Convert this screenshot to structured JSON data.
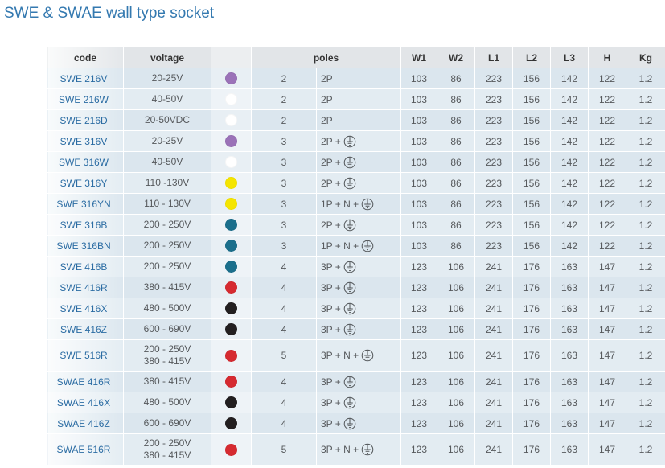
{
  "title": "SWE & SWAE wall type socket",
  "theme": {
    "title_color": "#3479b0",
    "code_text_color": "#2b6ca3",
    "header_background": "#e2e5e8",
    "row_background": "#dbe6ee"
  },
  "table": {
    "headers": {
      "code": "code",
      "voltage": "voltage",
      "poles": "poles",
      "w1": "W1",
      "w2": "W2",
      "l1": "L1",
      "l2": "L2",
      "l3": "L3",
      "h": "H",
      "kg": "Kg"
    },
    "rows": [
      {
        "code": "SWE 216V",
        "voltage": [
          "20-25V"
        ],
        "color": "#9b72b8",
        "pole_count": 2,
        "poles": "2P",
        "earth_icon": null,
        "w1": 103,
        "w2": 86,
        "l1": 223,
        "l2": 156,
        "l3": 142,
        "h": 122,
        "kg": "1.2"
      },
      {
        "code": "SWE 216W",
        "voltage": [
          "40-50V"
        ],
        "color": "#ffffff",
        "pole_count": 2,
        "poles": "2P",
        "earth_icon": null,
        "w1": 103,
        "w2": 86,
        "l1": 223,
        "l2": 156,
        "l3": 142,
        "h": 122,
        "kg": "1.2"
      },
      {
        "code": "SWE 216D",
        "voltage": [
          "20-50VDC"
        ],
        "color": "#ffffff",
        "pole_count": 2,
        "poles": "2P",
        "earth_icon": null,
        "w1": 103,
        "w2": 86,
        "l1": 223,
        "l2": 156,
        "l3": 142,
        "h": 122,
        "kg": "1.2"
      },
      {
        "code": "SWE 316V",
        "voltage": [
          "20-25V"
        ],
        "color": "#9b72b8",
        "pole_count": 3,
        "poles": "2P +",
        "earth_icon": "earth-ground-icon",
        "w1": 103,
        "w2": 86,
        "l1": 223,
        "l2": 156,
        "l3": 142,
        "h": 122,
        "kg": "1.2"
      },
      {
        "code": "SWE 316W",
        "voltage": [
          "40-50V"
        ],
        "color": "#ffffff",
        "pole_count": 3,
        "poles": "2P +",
        "earth_icon": "earth-ground-icon",
        "w1": 103,
        "w2": 86,
        "l1": 223,
        "l2": 156,
        "l3": 142,
        "h": 122,
        "kg": "1.2"
      },
      {
        "code": "SWE 316Y",
        "voltage": [
          "110 -130V"
        ],
        "color": "#f5e500",
        "pole_count": 3,
        "poles": "2P +",
        "earth_icon": "earth-ground-icon",
        "w1": 103,
        "w2": 86,
        "l1": 223,
        "l2": 156,
        "l3": 142,
        "h": 122,
        "kg": "1.2"
      },
      {
        "code": "SWE 316YN",
        "voltage": [
          "110 - 130V"
        ],
        "color": "#f5e500",
        "pole_count": 3,
        "poles": "1P + N +",
        "earth_icon": "earth-ground-icon",
        "w1": 103,
        "w2": 86,
        "l1": 223,
        "l2": 156,
        "l3": 142,
        "h": 122,
        "kg": "1.2"
      },
      {
        "code": "SWE 316B",
        "voltage": [
          "200 - 250V"
        ],
        "color": "#1b6f8c",
        "pole_count": 3,
        "poles": "2P +",
        "earth_icon": "earth-ground-icon",
        "w1": 103,
        "w2": 86,
        "l1": 223,
        "l2": 156,
        "l3": 142,
        "h": 122,
        "kg": "1.2"
      },
      {
        "code": "SWE 316BN",
        "voltage": [
          "200 - 250V"
        ],
        "color": "#1b6f8c",
        "pole_count": 3,
        "poles": "1P + N +",
        "earth_icon": "earth-ground-icon",
        "w1": 103,
        "w2": 86,
        "l1": 223,
        "l2": 156,
        "l3": 142,
        "h": 122,
        "kg": "1.2"
      },
      {
        "code": "SWE 416B",
        "voltage": [
          "200 - 250V"
        ],
        "color": "#1b6f8c",
        "pole_count": 4,
        "poles": "3P +",
        "earth_icon": "earth-ground-icon",
        "w1": 123,
        "w2": 106,
        "l1": 241,
        "l2": 176,
        "l3": 163,
        "h": 147,
        "kg": "1.2"
      },
      {
        "code": "SWE 416R",
        "voltage": [
          "380 - 415V"
        ],
        "color": "#d62a30",
        "pole_count": 4,
        "poles": "3P +",
        "earth_icon": "earth-ground-icon",
        "w1": 123,
        "w2": 106,
        "l1": 241,
        "l2": 176,
        "l3": 163,
        "h": 147,
        "kg": "1.2"
      },
      {
        "code": "SWE 416X",
        "voltage": [
          "480 - 500V"
        ],
        "color": "#231f20",
        "pole_count": 4,
        "poles": "3P +",
        "earth_icon": "earth-ground-icon",
        "w1": 123,
        "w2": 106,
        "l1": 241,
        "l2": 176,
        "l3": 163,
        "h": 147,
        "kg": "1.2"
      },
      {
        "code": "SWE 416Z",
        "voltage": [
          "600 - 690V"
        ],
        "color": "#231f20",
        "pole_count": 4,
        "poles": "3P +",
        "earth_icon": "earth-ground-icon",
        "w1": 123,
        "w2": 106,
        "l1": 241,
        "l2": 176,
        "l3": 163,
        "h": 147,
        "kg": "1.2"
      },
      {
        "code": "SWE 516R",
        "voltage": [
          "200 - 250V",
          "380 - 415V"
        ],
        "color": "#d62a30",
        "pole_count": 5,
        "poles": "3P + N +",
        "earth_icon": "earth-ground-icon",
        "w1": 123,
        "w2": 106,
        "l1": 241,
        "l2": 176,
        "l3": 163,
        "h": 147,
        "kg": "1.2"
      },
      {
        "code": "SWAE 416R",
        "voltage": [
          "380 - 415V"
        ],
        "color": "#d62a30",
        "pole_count": 4,
        "poles": "3P +",
        "earth_icon": "earth-ground-icon",
        "w1": 123,
        "w2": 106,
        "l1": 241,
        "l2": 176,
        "l3": 163,
        "h": 147,
        "kg": "1.2"
      },
      {
        "code": "SWAE 416X",
        "voltage": [
          "480 - 500V"
        ],
        "color": "#231f20",
        "pole_count": 4,
        "poles": "3P +",
        "earth_icon": "earth-ground-icon",
        "w1": 123,
        "w2": 106,
        "l1": 241,
        "l2": 176,
        "l3": 163,
        "h": 147,
        "kg": "1.2"
      },
      {
        "code": "SWAE 416Z",
        "voltage": [
          "600 - 690V"
        ],
        "color": "#231f20",
        "pole_count": 4,
        "poles": "3P +",
        "earth_icon": "earth-ground-icon",
        "w1": 123,
        "w2": 106,
        "l1": 241,
        "l2": 176,
        "l3": 163,
        "h": 147,
        "kg": "1.2"
      },
      {
        "code": "SWAE 516R",
        "voltage": [
          "200 - 250V",
          "380 - 415V"
        ],
        "color": "#d62a30",
        "pole_count": 5,
        "poles": "3P + N +",
        "earth_icon": "earth-ground-icon",
        "w1": 123,
        "w2": 106,
        "l1": 241,
        "l2": 176,
        "l3": 163,
        "h": 147,
        "kg": "1.2"
      }
    ]
  }
}
